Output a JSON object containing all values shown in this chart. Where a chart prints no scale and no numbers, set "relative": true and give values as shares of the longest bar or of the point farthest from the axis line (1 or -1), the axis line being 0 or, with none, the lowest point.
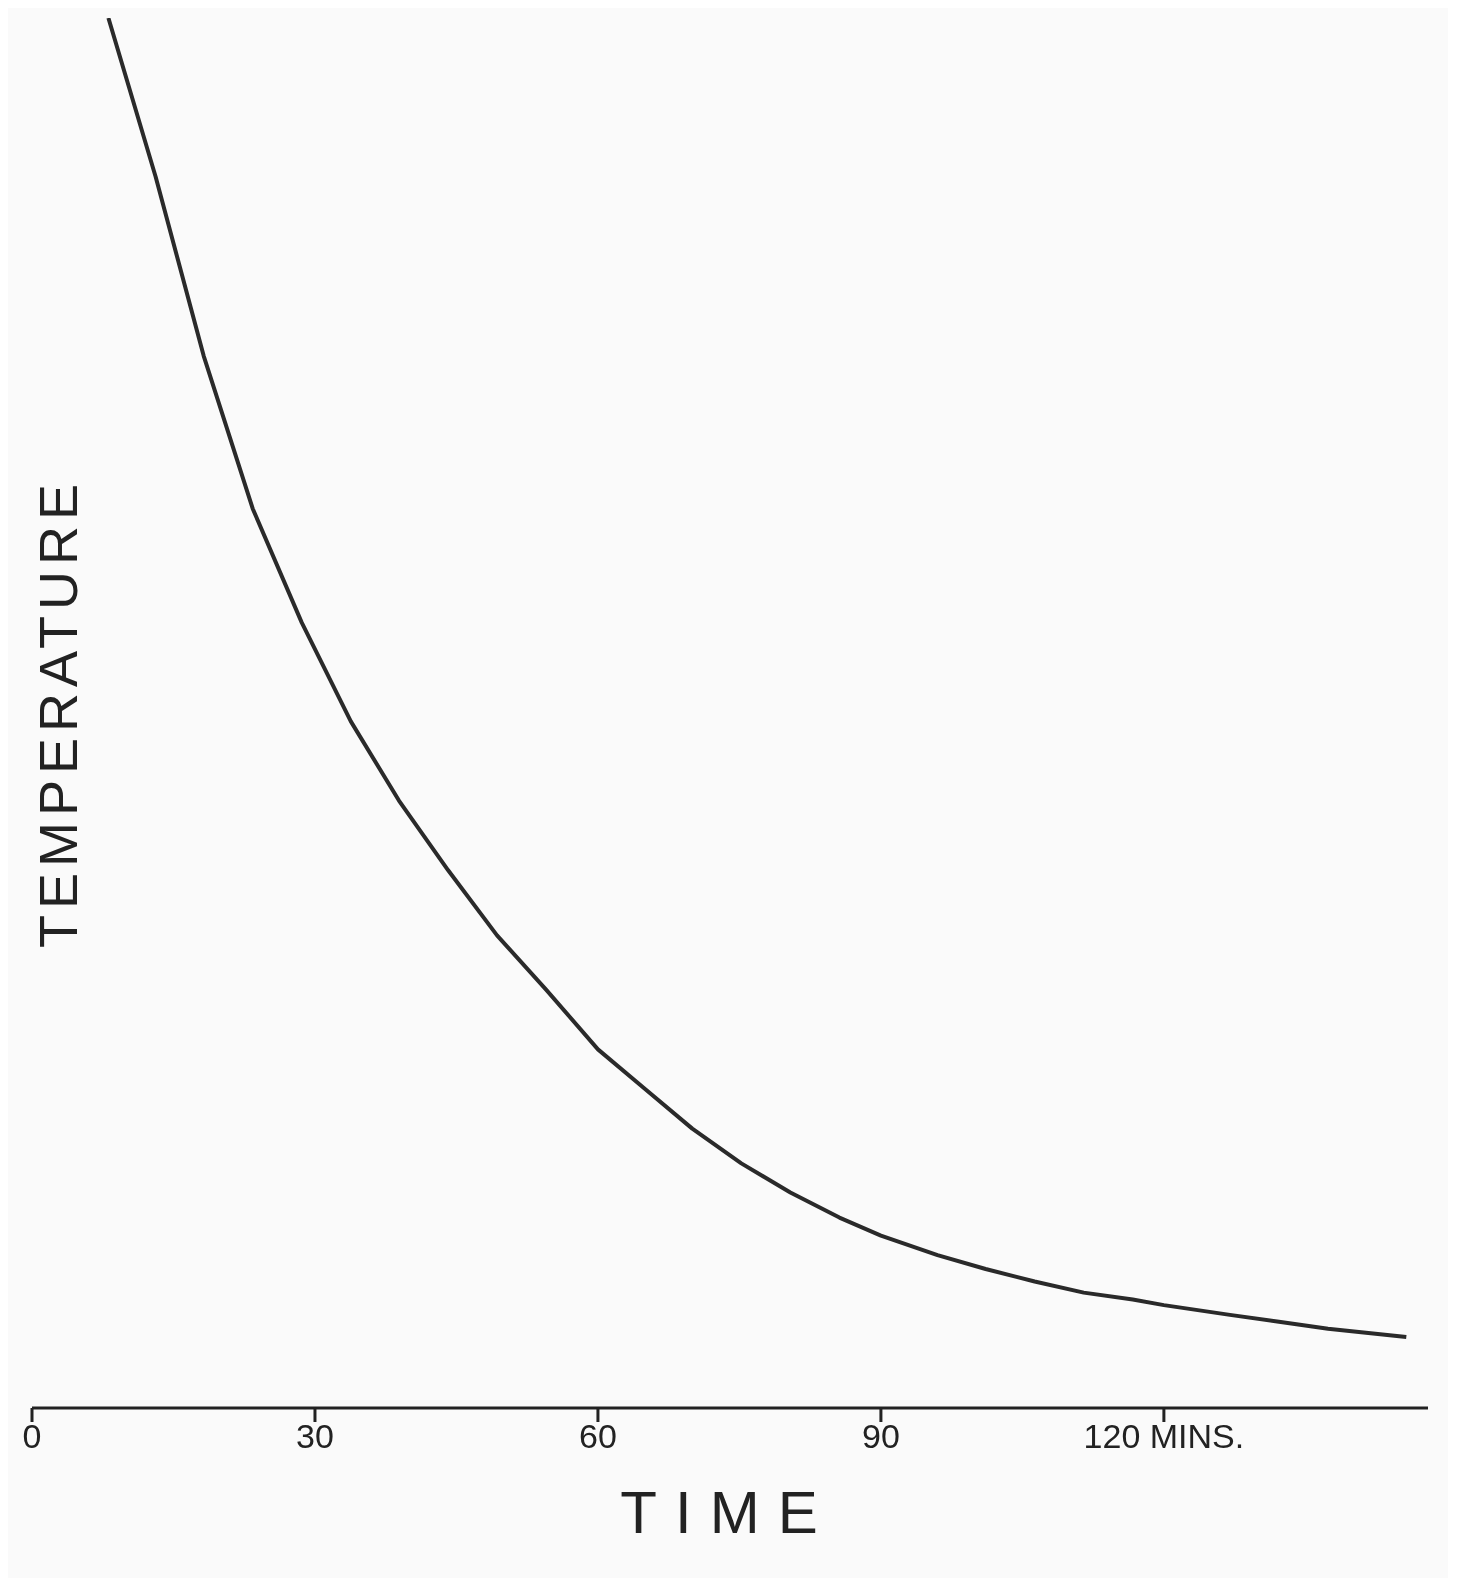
{
  "chart_data": {
    "type": "line",
    "xlabel": "TIME",
    "ylabel": "TEMPERATURE",
    "relative": true,
    "marker": "none",
    "grid": false,
    "legend": false,
    "xlim": [
      0,
      148
    ],
    "xticks": [
      0,
      30,
      60,
      90,
      {
        "value": 120,
        "label": "120 MINS."
      }
    ],
    "x": [
      8.1,
      13.1,
      18.2,
      23.4,
      28.6,
      33.8,
      38.9,
      44.1,
      49.3,
      54.5,
      60,
      64.9,
      70,
      75.2,
      80.4,
      85.6,
      90,
      96,
      101.1,
      106.3,
      111.5,
      116.7,
      120,
      127,
      132.2,
      137.4,
      145.7
    ],
    "series": [
      {
        "color": "#2a2a2a",
        "values": [
          1,
          0.886,
          0.757,
          0.647,
          0.565,
          0.494,
          0.437,
          0.387,
          0.34,
          0.301,
          0.258,
          0.23,
          0.201,
          0.176,
          0.155,
          0.137,
          0.124,
          0.11,
          0.1,
          0.091,
          0.083,
          0.078,
          0.074,
          0.067,
          0.062,
          0.057,
          0.051
        ]
      }
    ]
  }
}
